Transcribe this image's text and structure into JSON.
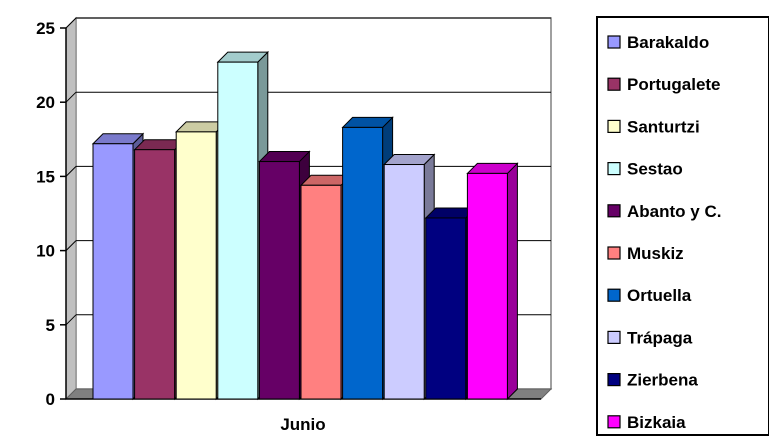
{
  "chart_data": {
    "type": "bar",
    "categories": [
      "Junio"
    ],
    "ylim": [
      0,
      25
    ],
    "yticks": [
      "0",
      "5",
      "10",
      "15",
      "20",
      "25"
    ],
    "grid": true,
    "legend_position": "right",
    "series": [
      {
        "name": "Barakaldo",
        "values": [
          17.2
        ],
        "color": "#9999ff"
      },
      {
        "name": "Portugalete",
        "values": [
          16.8
        ],
        "color": "#993366"
      },
      {
        "name": "Santurtzi",
        "values": [
          18.0
        ],
        "color": "#ffffcc"
      },
      {
        "name": "Sestao",
        "values": [
          22.7
        ],
        "color": "#ccffff"
      },
      {
        "name": "Abanto y C.",
        "values": [
          16.0
        ],
        "color": "#660066"
      },
      {
        "name": "Muskiz",
        "values": [
          14.4
        ],
        "color": "#ff8080"
      },
      {
        "name": "Ortuella",
        "values": [
          18.3
        ],
        "color": "#0066cc"
      },
      {
        "name": "Trápaga",
        "values": [
          15.8
        ],
        "color": "#ccccff"
      },
      {
        "name": "Zierbena",
        "values": [
          12.2
        ],
        "color": "#000080"
      },
      {
        "name": "Bizkaia",
        "values": [
          15.2
        ],
        "color": "#ff00ff"
      }
    ]
  }
}
